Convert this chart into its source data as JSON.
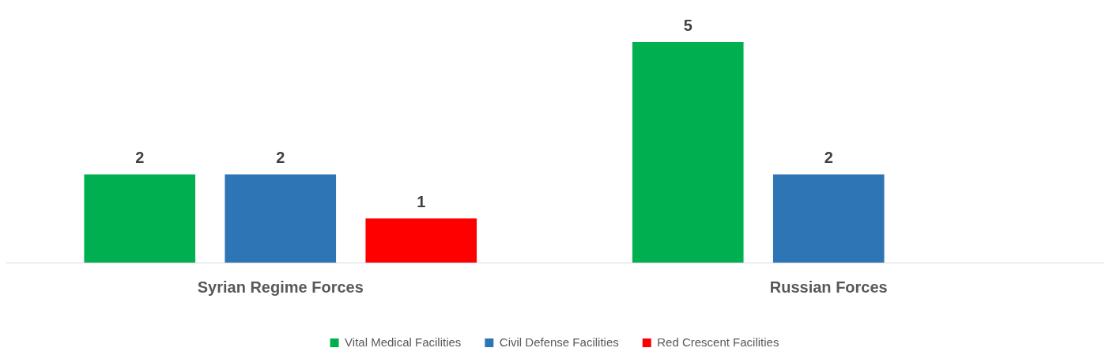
{
  "chart_data": {
    "type": "bar",
    "categories": [
      "Syrian Regime Forces",
      "Russian Forces"
    ],
    "series": [
      {
        "name": "Vital Medical Facilities",
        "color": "#00b050",
        "values": [
          2,
          5
        ]
      },
      {
        "name": "Civil Defense Facilities",
        "color": "#2e75b6",
        "values": [
          2,
          2
        ]
      },
      {
        "name": "Red Crescent Facilities",
        "color": "#ff0000",
        "values": [
          1,
          null
        ]
      }
    ],
    "data_labels": true,
    "legend": "bottom",
    "grid": false,
    "tick_labels": "x"
  }
}
